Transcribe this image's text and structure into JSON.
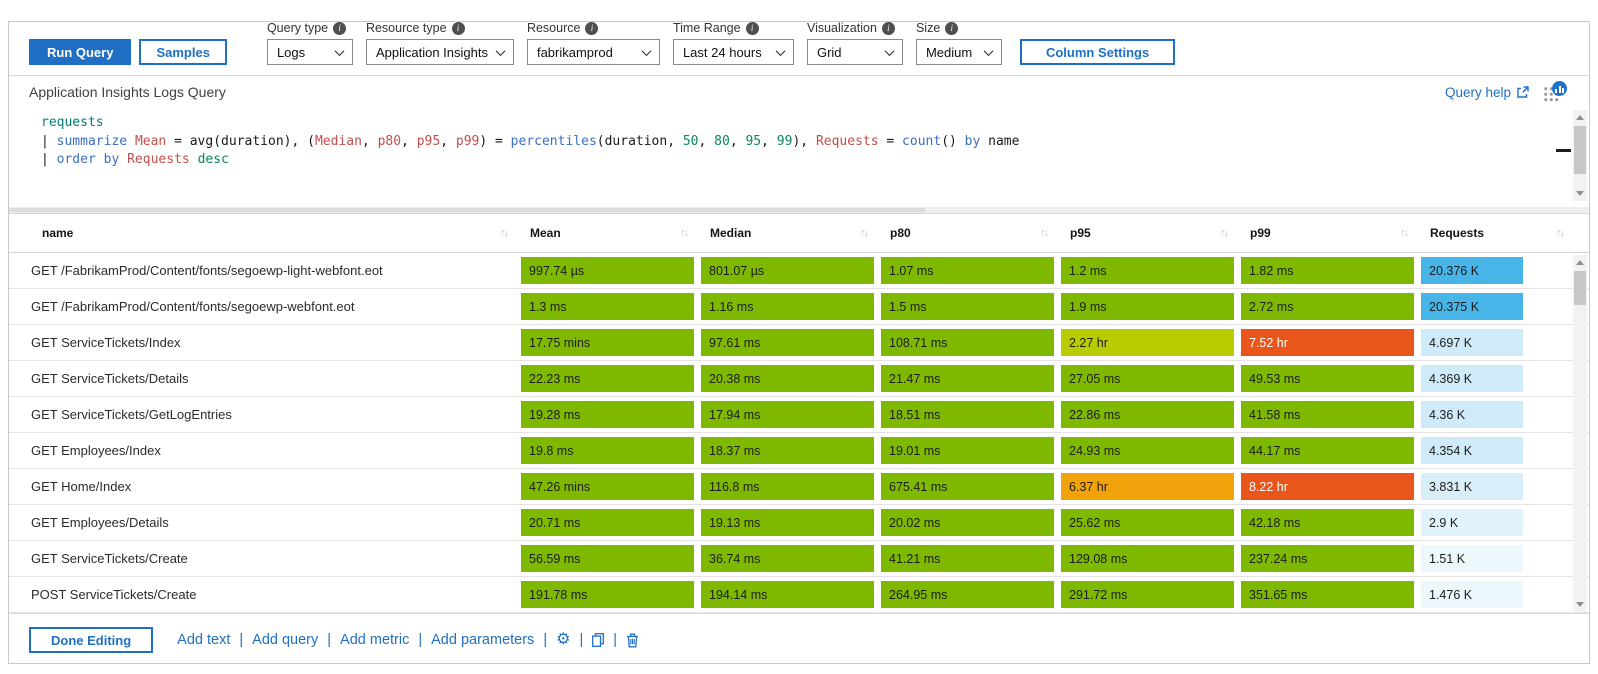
{
  "accent": "#1f70c4",
  "toolbar": {
    "run_query": "Run Query",
    "samples": "Samples",
    "column_settings": "Column Settings",
    "dropdowns": [
      {
        "label": "Query type",
        "value": "Logs"
      },
      {
        "label": "Resource type",
        "value": "Application Insights"
      },
      {
        "label": "Resource",
        "value": "fabrikamprod"
      },
      {
        "label": "Time Range",
        "value": "Last 24 hours"
      },
      {
        "label": "Visualization",
        "value": "Grid"
      },
      {
        "label": "Size",
        "value": "Medium"
      }
    ]
  },
  "query": {
    "title": "Application Insights Logs Query",
    "help_label": "Query help",
    "code": [
      [
        {
          "t": "requests",
          "c": "tbl"
        }
      ],
      [
        {
          "t": "| ",
          "c": "pln"
        },
        {
          "t": "summarize",
          "c": "kw"
        },
        {
          "t": " ",
          "c": "pln"
        },
        {
          "t": "Mean",
          "c": "col"
        },
        {
          "t": " = avg(duration), (",
          "c": "pln"
        },
        {
          "t": "Median",
          "c": "col"
        },
        {
          "t": ", ",
          "c": "pln"
        },
        {
          "t": "p80",
          "c": "col"
        },
        {
          "t": ", ",
          "c": "pln"
        },
        {
          "t": "p95",
          "c": "col"
        },
        {
          "t": ", ",
          "c": "pln"
        },
        {
          "t": "p99",
          "c": "col"
        },
        {
          "t": ") = ",
          "c": "pln"
        },
        {
          "t": "percentiles",
          "c": "kw"
        },
        {
          "t": "(duration, ",
          "c": "pln"
        },
        {
          "t": "50",
          "c": "num"
        },
        {
          "t": ", ",
          "c": "pln"
        },
        {
          "t": "80",
          "c": "num"
        },
        {
          "t": ", ",
          "c": "pln"
        },
        {
          "t": "95",
          "c": "num"
        },
        {
          "t": ", ",
          "c": "pln"
        },
        {
          "t": "99",
          "c": "num"
        },
        {
          "t": "), ",
          "c": "pln"
        },
        {
          "t": "Requests",
          "c": "col"
        },
        {
          "t": " = ",
          "c": "pln"
        },
        {
          "t": "count",
          "c": "kw"
        },
        {
          "t": "() ",
          "c": "pln"
        },
        {
          "t": "by",
          "c": "kw"
        },
        {
          "t": " name",
          "c": "pln"
        }
      ],
      [
        {
          "t": "| ",
          "c": "pln"
        },
        {
          "t": "order",
          "c": "kw"
        },
        {
          "t": " ",
          "c": "pln"
        },
        {
          "t": "by",
          "c": "kw"
        },
        {
          "t": " ",
          "c": "pln"
        },
        {
          "t": "Requests",
          "c": "col"
        },
        {
          "t": " ",
          "c": "pln"
        },
        {
          "t": "desc",
          "c": "num"
        }
      ]
    ]
  },
  "table": {
    "sort_glyph": "↑↓",
    "headers": [
      "name",
      "Mean",
      "Median",
      "p80",
      "p95",
      "p99",
      "Requests"
    ],
    "palette": {
      "green": "#7eb900",
      "yellowGreen": "#b8cc00",
      "orange": "#f2a30b",
      "red": "#e8561c",
      "blue": "#47b5e8",
      "paleBlue1": "#cfeaf8",
      "paleBlue2": "#d8eef9",
      "paleBlue3": "#e1f3fb",
      "paleBlue4": "#edf8fd"
    },
    "rows": [
      {
        "name": "GET /FabrikamProd/Content/fonts/segoewp-light-webfont.eot",
        "cells": [
          {
            "v": "997.74 µs",
            "c": "green"
          },
          {
            "v": "801.07 µs",
            "c": "green"
          },
          {
            "v": "1.07 ms",
            "c": "green"
          },
          {
            "v": "1.2 ms",
            "c": "green"
          },
          {
            "v": "1.82 ms",
            "c": "green"
          },
          {
            "v": "20.376 K",
            "c": "blue"
          }
        ]
      },
      {
        "name": "GET /FabrikamProd/Content/fonts/segoewp-webfont.eot",
        "cells": [
          {
            "v": "1.3 ms",
            "c": "green"
          },
          {
            "v": "1.16 ms",
            "c": "green"
          },
          {
            "v": "1.5 ms",
            "c": "green"
          },
          {
            "v": "1.9 ms",
            "c": "green"
          },
          {
            "v": "2.72 ms",
            "c": "green"
          },
          {
            "v": "20.375 K",
            "c": "blue"
          }
        ]
      },
      {
        "name": "GET ServiceTickets/Index",
        "cells": [
          {
            "v": "17.75 mins",
            "c": "green"
          },
          {
            "v": "97.61 ms",
            "c": "green"
          },
          {
            "v": "108.71 ms",
            "c": "green"
          },
          {
            "v": "2.27 hr",
            "c": "yellowGreen"
          },
          {
            "v": "7.52 hr",
            "c": "red",
            "w": true
          },
          {
            "v": "4.697 K",
            "c": "paleBlue1"
          }
        ]
      },
      {
        "name": "GET ServiceTickets/Details",
        "cells": [
          {
            "v": "22.23 ms",
            "c": "green"
          },
          {
            "v": "20.38 ms",
            "c": "green"
          },
          {
            "v": "21.47 ms",
            "c": "green"
          },
          {
            "v": "27.05 ms",
            "c": "green"
          },
          {
            "v": "49.53 ms",
            "c": "green"
          },
          {
            "v": "4.369 K",
            "c": "paleBlue1"
          }
        ]
      },
      {
        "name": "GET ServiceTickets/GetLogEntries",
        "cells": [
          {
            "v": "19.28 ms",
            "c": "green"
          },
          {
            "v": "17.94 ms",
            "c": "green"
          },
          {
            "v": "18.51 ms",
            "c": "green"
          },
          {
            "v": "22.86 ms",
            "c": "green"
          },
          {
            "v": "41.58 ms",
            "c": "green"
          },
          {
            "v": "4.36 K",
            "c": "paleBlue1"
          }
        ]
      },
      {
        "name": "GET Employees/Index",
        "cells": [
          {
            "v": "19.8 ms",
            "c": "green"
          },
          {
            "v": "18.37 ms",
            "c": "green"
          },
          {
            "v": "19.01 ms",
            "c": "green"
          },
          {
            "v": "24.93 ms",
            "c": "green"
          },
          {
            "v": "44.17 ms",
            "c": "green"
          },
          {
            "v": "4.354 K",
            "c": "paleBlue1"
          }
        ]
      },
      {
        "name": "GET Home/Index",
        "cells": [
          {
            "v": "47.26 mins",
            "c": "green"
          },
          {
            "v": "116.8 ms",
            "c": "green"
          },
          {
            "v": "675.41 ms",
            "c": "green"
          },
          {
            "v": "6.37 hr",
            "c": "orange"
          },
          {
            "v": "8.22 hr",
            "c": "red",
            "w": true
          },
          {
            "v": "3.831 K",
            "c": "paleBlue2"
          }
        ]
      },
      {
        "name": "GET Employees/Details",
        "cells": [
          {
            "v": "20.71 ms",
            "c": "green"
          },
          {
            "v": "19.13 ms",
            "c": "green"
          },
          {
            "v": "20.02 ms",
            "c": "green"
          },
          {
            "v": "25.62 ms",
            "c": "green"
          },
          {
            "v": "42.18 ms",
            "c": "green"
          },
          {
            "v": "2.9 K",
            "c": "paleBlue3"
          }
        ]
      },
      {
        "name": "GET ServiceTickets/Create",
        "cells": [
          {
            "v": "56.59 ms",
            "c": "green"
          },
          {
            "v": "36.74 ms",
            "c": "green"
          },
          {
            "v": "41.21 ms",
            "c": "green"
          },
          {
            "v": "129.08 ms",
            "c": "green"
          },
          {
            "v": "237.24 ms",
            "c": "green"
          },
          {
            "v": "1.51 K",
            "c": "paleBlue4"
          }
        ]
      },
      {
        "name": "POST ServiceTickets/Create",
        "cells": [
          {
            "v": "191.78 ms",
            "c": "green"
          },
          {
            "v": "194.14 ms",
            "c": "green"
          },
          {
            "v": "264.95 ms",
            "c": "green"
          },
          {
            "v": "291.72 ms",
            "c": "green"
          },
          {
            "v": "351.65 ms",
            "c": "green"
          },
          {
            "v": "1.476 K",
            "c": "paleBlue4"
          }
        ]
      }
    ]
  },
  "footer": {
    "done_editing": "Done Editing",
    "links": [
      "Add text",
      "Add query",
      "Add metric",
      "Add parameters"
    ],
    "separator": "|"
  }
}
